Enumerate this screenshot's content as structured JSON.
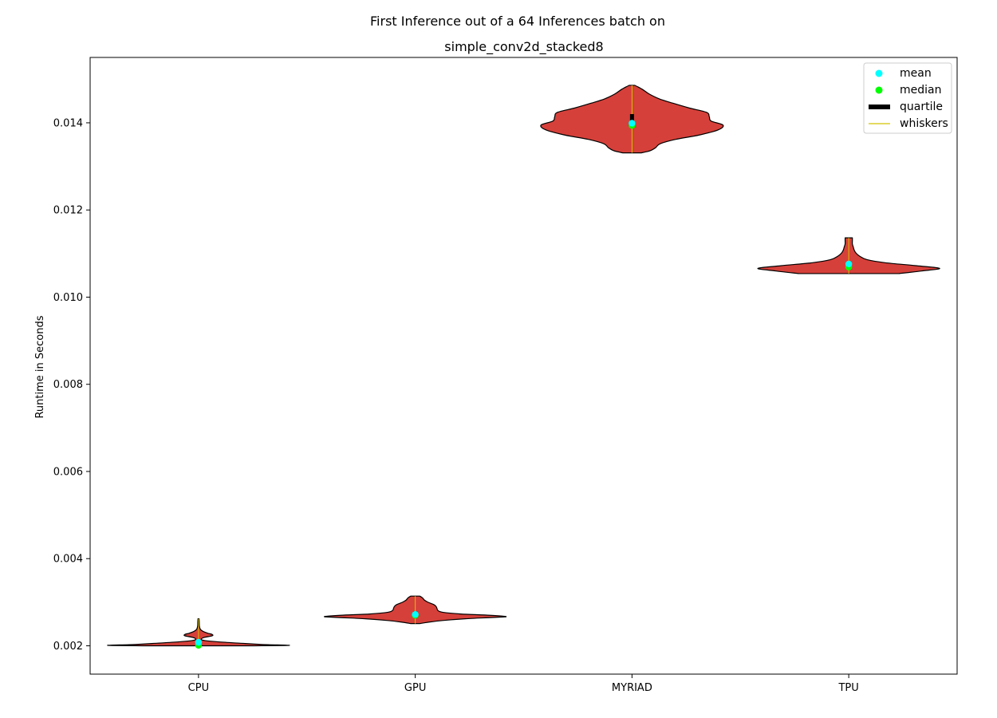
{
  "chart_data": {
    "type": "violin",
    "title": "First Inference out of a 64 Inferences batch on",
    "subtitle": "simple_conv2d_stacked8",
    "xlabel": "",
    "ylabel": "Runtime in Seconds",
    "ylim": [
      0.00135,
      0.0155
    ],
    "yticks": [
      0.002,
      0.004,
      0.006,
      0.008,
      0.01,
      0.012,
      0.014
    ],
    "ytick_labels": [
      "0.002",
      "0.004",
      "0.006",
      "0.008",
      "0.010",
      "0.012",
      "0.014"
    ],
    "categories": [
      "CPU",
      "GPU",
      "MYRIAD",
      "TPU"
    ],
    "grid": false,
    "legend_position": "top-right",
    "legend": [
      {
        "label": "mean",
        "kind": "dot",
        "color": "#00ffff"
      },
      {
        "label": "median",
        "kind": "dot",
        "color": "#00ff00"
      },
      {
        "label": "quartile",
        "kind": "bar",
        "color": "#000000"
      },
      {
        "label": "whiskers",
        "kind": "line",
        "color": "#d4c400"
      }
    ],
    "colors": {
      "violin_fill": "#d6403a",
      "violin_edge": "#000000",
      "mean": "#00ffff",
      "median": "#00ff00",
      "quartile": "#000000",
      "whiskers": "#d4c400"
    },
    "violins": [
      {
        "category": "CPU",
        "min": 0.002,
        "max": 0.00262,
        "mean": 0.00208,
        "median": 0.00201,
        "q1": 0.002,
        "q3": 0.0021,
        "profile": [
          [
            0.002,
            0.6
          ],
          [
            0.00201,
            1.0
          ],
          [
            0.00203,
            0.7
          ],
          [
            0.00206,
            0.45
          ],
          [
            0.00209,
            0.22
          ],
          [
            0.00212,
            0.07
          ],
          [
            0.00215,
            0.03
          ],
          [
            0.00219,
            0.06
          ],
          [
            0.00223,
            0.15
          ],
          [
            0.00226,
            0.15
          ],
          [
            0.00229,
            0.1
          ],
          [
            0.00233,
            0.05
          ],
          [
            0.00238,
            0.02
          ],
          [
            0.00245,
            0.01
          ],
          [
            0.00255,
            0.008
          ],
          [
            0.00262,
            0.006
          ]
        ]
      },
      {
        "category": "GPU",
        "min": 0.00251,
        "max": 0.00314,
        "mean": 0.00272,
        "median": 0.0027,
        "q1": 0.00266,
        "q3": 0.00279,
        "profile": [
          [
            0.00251,
            0.05
          ],
          [
            0.00254,
            0.14
          ],
          [
            0.00258,
            0.3
          ],
          [
            0.00262,
            0.55
          ],
          [
            0.00265,
            0.85
          ],
          [
            0.00267,
            1.0
          ],
          [
            0.0027,
            0.82
          ],
          [
            0.00273,
            0.5
          ],
          [
            0.00277,
            0.3
          ],
          [
            0.00281,
            0.25
          ],
          [
            0.00285,
            0.24
          ],
          [
            0.0029,
            0.23
          ],
          [
            0.00295,
            0.2
          ],
          [
            0.003,
            0.14
          ],
          [
            0.00305,
            0.1
          ],
          [
            0.0031,
            0.08
          ],
          [
            0.00314,
            0.05
          ]
        ]
      },
      {
        "category": "MYRIAD",
        "min": 0.01331,
        "max": 0.01486,
        "mean": 0.01399,
        "median": 0.01394,
        "q1": 0.0139,
        "q3": 0.0142,
        "profile": [
          [
            0.01331,
            0.1
          ],
          [
            0.01336,
            0.2
          ],
          [
            0.01343,
            0.26
          ],
          [
            0.01352,
            0.31
          ],
          [
            0.01362,
            0.48
          ],
          [
            0.01372,
            0.74
          ],
          [
            0.01384,
            0.95
          ],
          [
            0.01395,
            1.0
          ],
          [
            0.01404,
            0.87
          ],
          [
            0.01414,
            0.85
          ],
          [
            0.01424,
            0.82
          ],
          [
            0.01434,
            0.63
          ],
          [
            0.01445,
            0.45
          ],
          [
            0.01455,
            0.3
          ],
          [
            0.01466,
            0.19
          ],
          [
            0.01476,
            0.12
          ],
          [
            0.01483,
            0.06
          ],
          [
            0.01486,
            0.03
          ]
        ]
      },
      {
        "category": "TPU",
        "min": 0.01054,
        "max": 0.01136,
        "mean": 0.01076,
        "median": 0.01069,
        "q1": 0.01066,
        "q3": 0.01079,
        "profile": [
          [
            0.01054,
            0.55
          ],
          [
            0.0106,
            0.8
          ],
          [
            0.01066,
            1.0
          ],
          [
            0.01072,
            0.75
          ],
          [
            0.01079,
            0.4
          ],
          [
            0.01086,
            0.2
          ],
          [
            0.01094,
            0.12
          ],
          [
            0.01101,
            0.08
          ],
          [
            0.01108,
            0.06
          ],
          [
            0.01115,
            0.05
          ],
          [
            0.01122,
            0.04
          ],
          [
            0.0113,
            0.04
          ],
          [
            0.01136,
            0.04
          ]
        ]
      }
    ]
  }
}
